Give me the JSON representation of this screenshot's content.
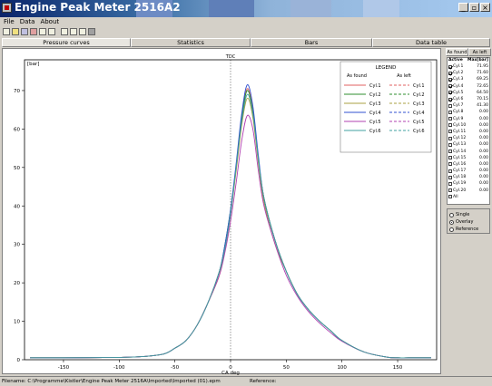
{
  "window": {
    "title": "Engine Peak Meter 2516A2",
    "controls": {
      "minimize": "_",
      "maximize": "▫",
      "close": "×"
    }
  },
  "menu": [
    "File",
    "Data",
    "About"
  ],
  "toolbar": [
    "new-icon",
    "open-icon",
    "save-icon",
    "export-icon",
    "print-icon",
    "preview-icon",
    "calc-icon",
    "chart-icon",
    "table-icon",
    "bars-icon"
  ],
  "tabs": [
    {
      "label": "Pressure curves",
      "active": true
    },
    {
      "label": "Statistics",
      "active": false
    },
    {
      "label": "Bars",
      "active": false
    },
    {
      "label": "Data table",
      "active": false
    }
  ],
  "side": {
    "tabs": [
      {
        "label": "As found",
        "active": true
      },
      {
        "label": "As left",
        "active": false
      }
    ],
    "header": {
      "active": "Active",
      "max": "Max[bar]"
    },
    "cylinders": [
      {
        "name": "Cyl.1",
        "checked": true,
        "max": "71.95"
      },
      {
        "name": "Cyl.2",
        "checked": true,
        "max": "71.60"
      },
      {
        "name": "Cyl.3",
        "checked": true,
        "max": "69.25"
      },
      {
        "name": "Cyl.4",
        "checked": true,
        "max": "72.65"
      },
      {
        "name": "Cyl.5",
        "checked": true,
        "max": "64.50"
      },
      {
        "name": "Cyl.6",
        "checked": true,
        "max": "70.15"
      },
      {
        "name": "Cyl.7",
        "checked": false,
        "max": "41.30"
      },
      {
        "name": "Cyl.8",
        "checked": false,
        "max": "0.00"
      },
      {
        "name": "Cyl.9",
        "checked": false,
        "max": "0.00"
      },
      {
        "name": "Cyl.10",
        "checked": false,
        "max": "0.00"
      },
      {
        "name": "Cyl.11",
        "checked": false,
        "max": "0.00"
      },
      {
        "name": "Cyl.12",
        "checked": false,
        "max": "0.00"
      },
      {
        "name": "Cyl.13",
        "checked": false,
        "max": "0.00"
      },
      {
        "name": "Cyl.14",
        "checked": false,
        "max": "0.00"
      },
      {
        "name": "Cyl.15",
        "checked": false,
        "max": "0.00"
      },
      {
        "name": "Cyl.16",
        "checked": false,
        "max": "0.00"
      },
      {
        "name": "Cyl.17",
        "checked": false,
        "max": "0.00"
      },
      {
        "name": "Cyl.18",
        "checked": false,
        "max": "0.00"
      },
      {
        "name": "Cyl.19",
        "checked": false,
        "max": "0.00"
      },
      {
        "name": "Cyl.20",
        "checked": false,
        "max": "0.00"
      }
    ],
    "all_label": "All",
    "modes": [
      {
        "label": "Single",
        "selected": false
      },
      {
        "label": "Overlay",
        "selected": true
      },
      {
        "label": "Reference",
        "selected": false
      }
    ]
  },
  "status": {
    "filename": "Filename: C:\\Programme\\Kistler\\Engine Peak Meter 2516A\\Imported\\Imported (01).epm",
    "reference": "Reference:"
  },
  "chart_data": {
    "type": "line",
    "xlabel": "CA deg",
    "ylabel": "[bar]",
    "marker_label": "TDC",
    "xlim": [
      -185,
      185
    ],
    "ylim": [
      0,
      78
    ],
    "xticks": [
      -150,
      -100,
      -50,
      0,
      50,
      100,
      150
    ],
    "yticks": [
      0,
      10,
      20,
      30,
      40,
      50,
      60,
      70
    ],
    "grid": false,
    "legend": {
      "title": "LEGEND",
      "placement": "top-right",
      "col1": "As found",
      "col2": "As left"
    },
    "x": [
      -180,
      -150,
      -100,
      -80,
      -60,
      -50,
      -40,
      -30,
      -20,
      -10,
      -5,
      0,
      5,
      10,
      15,
      20,
      25,
      30,
      40,
      50,
      60,
      70,
      80,
      90,
      100,
      120,
      140,
      150,
      160,
      180
    ],
    "series": [
      {
        "name": "Cyl.1",
        "color": "#e06060",
        "values": [
          0.5,
          0.5,
          0.6,
          0.8,
          1.5,
          3,
          5,
          9,
          15,
          23,
          29,
          38,
          50,
          63,
          70.5,
          65,
          52,
          42,
          31,
          23,
          17,
          13,
          10,
          7.5,
          5,
          2,
          0.7,
          0.5,
          0.5,
          0.5
        ]
      },
      {
        "name": "Cyl.2",
        "color": "#2f8f2f",
        "values": [
          0.5,
          0.5,
          0.6,
          0.8,
          1.5,
          3,
          5,
          9,
          15,
          23,
          30,
          39,
          50,
          63,
          70,
          64.5,
          52,
          42,
          31,
          23,
          17,
          13,
          10,
          7.5,
          5,
          2,
          0.7,
          0.5,
          0.5,
          0.5
        ]
      },
      {
        "name": "Cyl.3",
        "color": "#a8a040",
        "values": [
          0.5,
          0.5,
          0.6,
          0.8,
          1.5,
          3,
          5,
          9,
          15,
          22,
          29,
          38,
          49,
          61,
          68,
          63,
          51,
          41,
          30,
          23,
          17,
          13,
          10,
          7.5,
          5,
          2,
          0.7,
          0.5,
          0.5,
          0.5
        ]
      },
      {
        "name": "Cyl.4",
        "color": "#3050d0",
        "values": [
          0.5,
          0.5,
          0.6,
          0.8,
          1.5,
          3,
          5,
          9,
          15,
          23,
          30,
          39,
          51,
          64,
          71.5,
          66,
          53,
          42,
          31,
          23,
          17,
          13,
          10,
          7.5,
          5,
          2,
          0.7,
          0.5,
          0.5,
          0.5
        ]
      },
      {
        "name": "Cyl.5",
        "color": "#b040b0",
        "values": [
          0.5,
          0.5,
          0.6,
          0.8,
          1.5,
          3,
          5,
          9,
          15,
          22,
          28,
          36,
          46,
          57,
          63.5,
          60,
          49,
          40,
          30,
          22,
          16.5,
          12.5,
          9.5,
          7,
          4.8,
          2,
          0.7,
          0.5,
          0.5,
          0.5
        ]
      },
      {
        "name": "Cyl.6",
        "color": "#40a0a0",
        "values": [
          0.5,
          0.5,
          0.6,
          0.8,
          1.5,
          3,
          5,
          9,
          15,
          23,
          29,
          38,
          50,
          62,
          69,
          64,
          52,
          42,
          31,
          23,
          17,
          13,
          10,
          7.5,
          5,
          2,
          0.7,
          0.5,
          0.5,
          0.5
        ]
      }
    ]
  }
}
